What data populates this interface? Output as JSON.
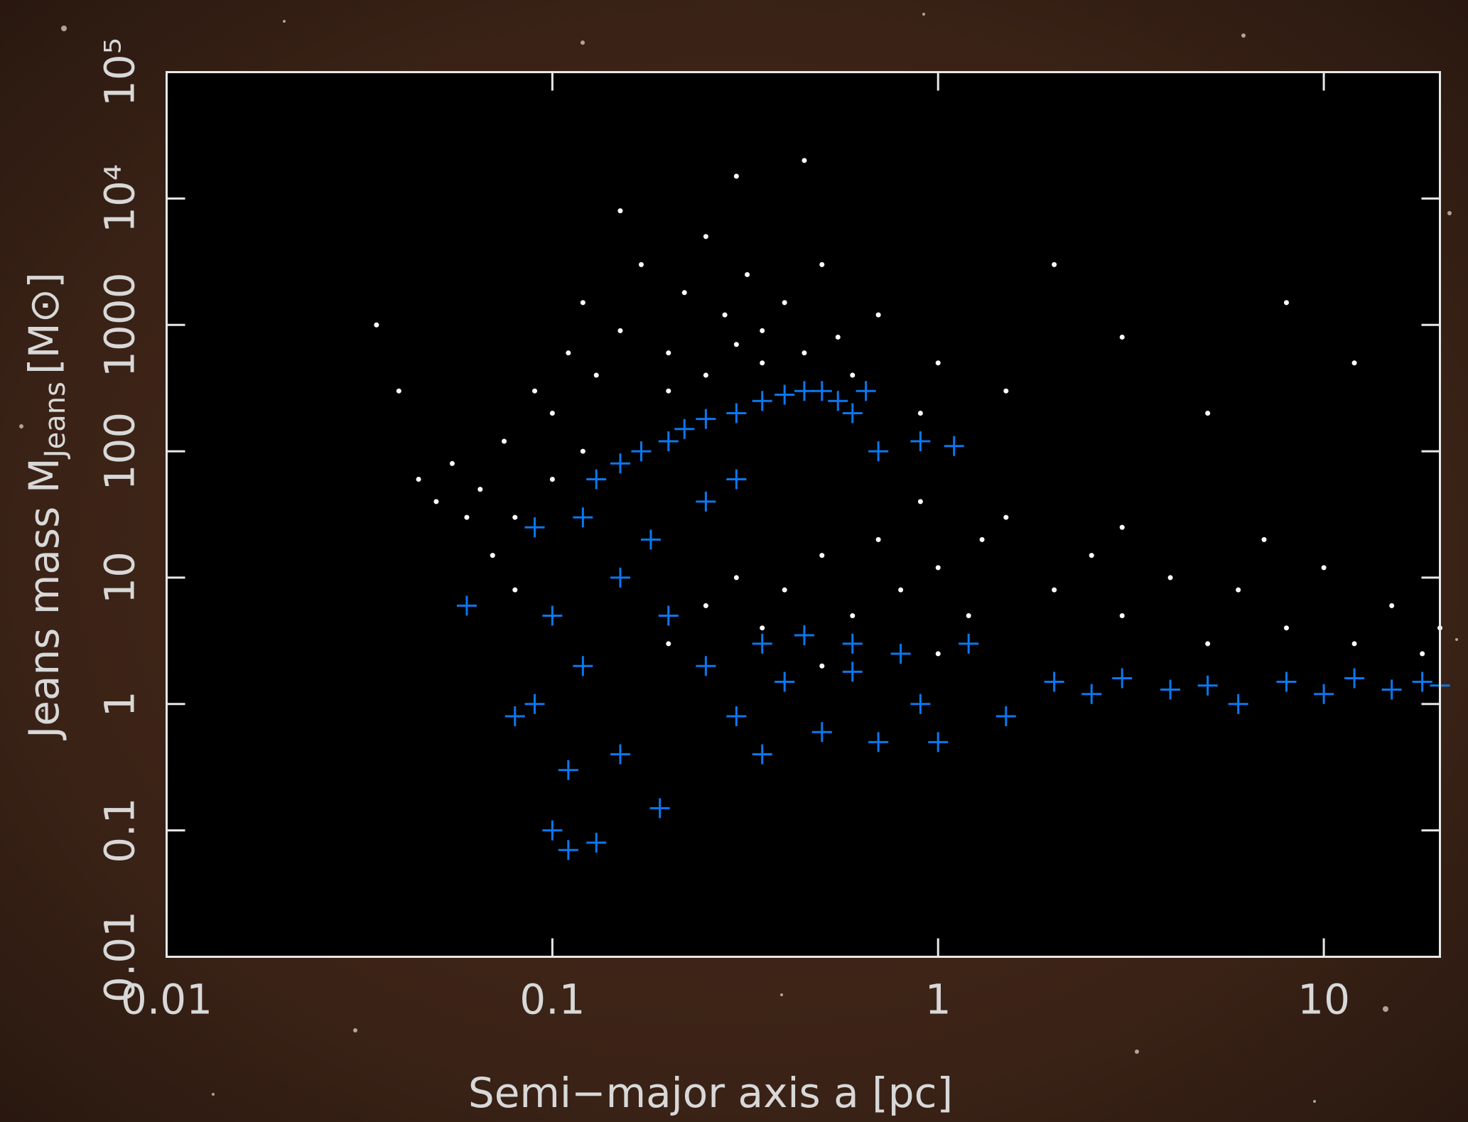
{
  "chart_data": {
    "type": "scatter",
    "x_label": "Semi−major axis a [pc]",
    "y_label": [
      "Jeans mass M",
      "Jeans",
      "[M⊙]"
    ],
    "xlog": true,
    "ylog": true,
    "xlim": [
      0.01,
      20
    ],
    "ylim": [
      0.01,
      100000
    ],
    "xticks": [
      0.01,
      0.1,
      1,
      10
    ],
    "yticks": [
      0.01,
      0.1,
      1,
      10,
      100,
      1000,
      {
        "value": 10000,
        "label": "10⁴"
      },
      {
        "value": 100000,
        "label": "10⁵"
      }
    ],
    "series": [
      {
        "color": "#ffffff",
        "marker": "dot",
        "x": [
          0.035,
          0.04,
          0.045,
          0.05,
          0.055,
          0.06,
          0.065,
          0.07,
          0.075,
          0.08,
          0.09,
          0.1,
          0.11,
          0.12,
          0.13,
          0.15,
          0.17,
          0.2,
          0.22,
          0.25,
          0.28,
          0.3,
          0.32,
          0.35,
          0.4,
          0.45,
          0.5,
          0.55,
          0.6,
          0.7,
          0.15,
          0.3,
          0.45,
          0.2,
          0.25,
          0.35,
          0.1,
          0.12,
          0.08,
          0.2,
          0.25,
          0.3,
          0.35,
          0.4,
          0.5,
          0.6,
          0.7,
          0.8,
          1,
          1.2,
          1.5,
          2,
          2.5,
          3,
          4,
          5,
          6,
          8,
          10,
          12,
          15,
          18,
          0.9,
          1.3,
          3,
          7,
          20,
          0.5,
          1,
          1.5,
          3,
          5,
          8,
          12,
          2,
          0.9,
          1
        ],
        "values": [
          1000,
          300,
          60,
          40,
          80,
          30,
          50,
          15,
          120,
          8,
          300,
          200,
          600,
          1500,
          400,
          900,
          3000,
          600,
          1800,
          5000,
          1200,
          700,
          2500,
          900,
          1500,
          600,
          3000,
          800,
          400,
          1200,
          8000,
          15000,
          20000,
          300,
          400,
          500,
          60,
          100,
          30,
          3,
          6,
          10,
          4,
          8,
          15,
          5,
          20,
          8,
          12,
          5,
          30,
          8,
          15,
          5,
          10,
          3,
          8,
          4,
          12,
          3,
          6,
          2.5,
          40,
          20,
          25,
          20,
          4,
          2,
          2.5,
          300,
          800,
          200,
          1500,
          500,
          3000,
          200,
          500
        ]
      },
      {
        "color": "#0a78f0",
        "marker": "plus",
        "x": [
          0.06,
          0.09,
          0.09,
          0.1,
          0.1,
          0.11,
          0.12,
          0.12,
          0.13,
          0.13,
          0.15,
          0.15,
          0.17,
          0.18,
          0.2,
          0.2,
          0.22,
          0.25,
          0.25,
          0.3,
          0.3,
          0.35,
          0.4,
          0.45,
          0.5,
          0.55,
          0.6,
          0.65,
          0.7,
          0.9,
          1.1,
          0.25,
          0.3,
          0.35,
          0.4,
          0.5,
          0.6,
          0.7,
          0.8,
          0.9,
          1,
          0.35,
          0.45,
          0.6,
          1.2,
          1.5,
          2,
          2.5,
          3,
          4,
          5,
          6,
          8,
          10,
          12,
          15,
          18,
          20,
          0.19,
          0.15,
          0.11,
          0.08
        ],
        "values": [
          6,
          25,
          1,
          0.1,
          5,
          0.3,
          30,
          2,
          0.08,
          60,
          80,
          10,
          100,
          20,
          120,
          5,
          150,
          180,
          40,
          200,
          60,
          250,
          280,
          300,
          300,
          250,
          200,
          300,
          100,
          120,
          110,
          2,
          0.8,
          0.4,
          1.5,
          0.6,
          1.8,
          0.5,
          2.5,
          1,
          0.5,
          3,
          3.5,
          3,
          3,
          0.8,
          1.5,
          1.2,
          1.6,
          1.3,
          1.4,
          1,
          1.5,
          1.2,
          1.6,
          1.3,
          1.5,
          1.4,
          0.15,
          0.4,
          0.07,
          0.8
        ]
      }
    ]
  }
}
